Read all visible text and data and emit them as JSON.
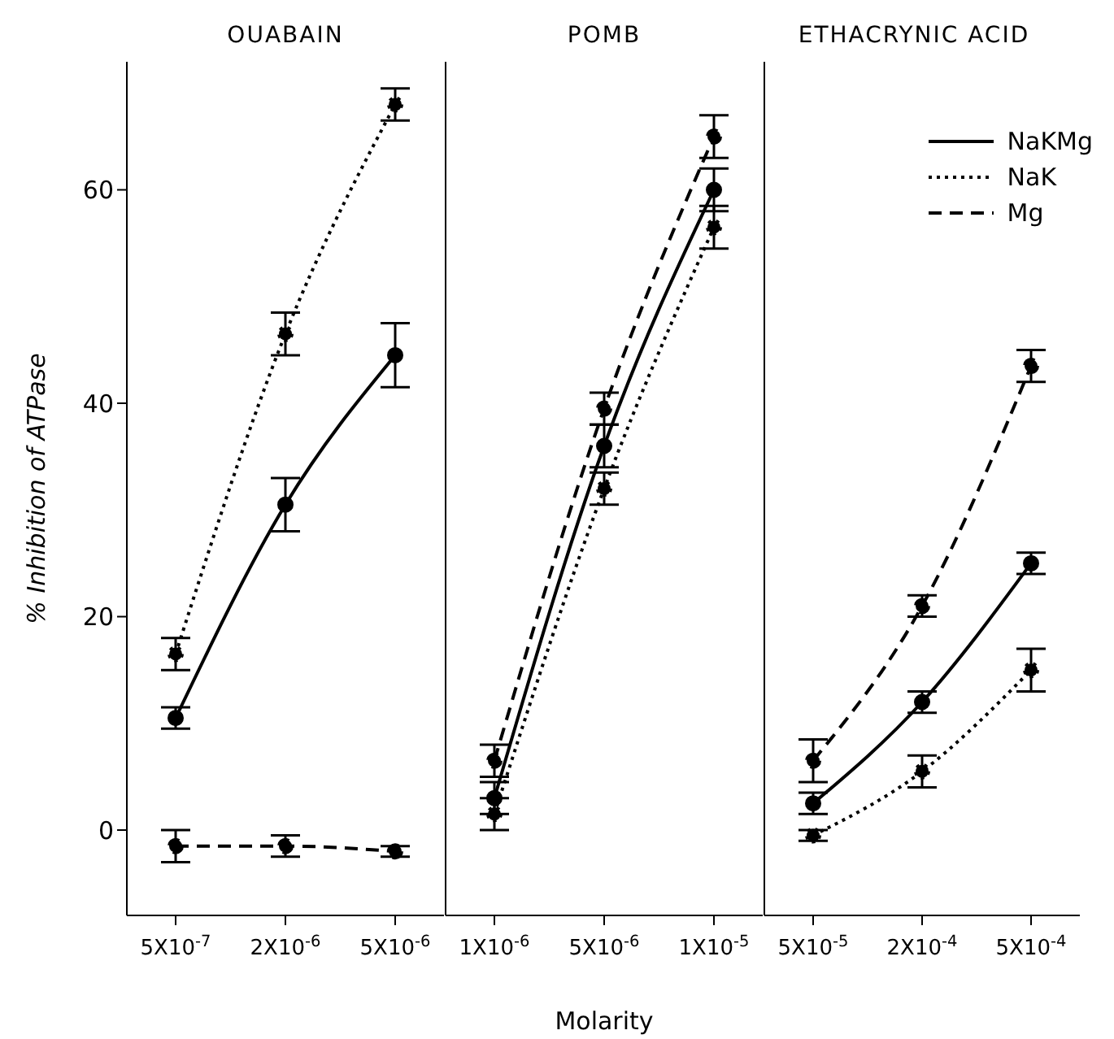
{
  "chart_data": [
    {
      "type": "line",
      "title": "OUABAIN",
      "ylabel": "% Inhibition of ATPase",
      "categories": [
        "5X10$^{-7}$",
        "2X10$^{-6}$",
        "5X10$^{-6}$"
      ],
      "ylim": [
        -8,
        72
      ],
      "yticks": [
        0,
        20,
        40,
        60
      ],
      "marker": "circle",
      "series": [
        {
          "color": "#000000",
          "line_style": "solid",
          "values": [
            10.5,
            30.5,
            44.5
          ],
          "errors": [
            1,
            2.5,
            3
          ]
        },
        {
          "color": "#000000",
          "line_style": "dotted",
          "values": [
            16.5,
            46.5,
            68
          ],
          "errors": [
            1.5,
            2,
            1.5
          ]
        },
        {
          "color": "#000000",
          "line_style": "dashed",
          "values": [
            -1.5,
            -1.5,
            -2
          ],
          "errors": [
            1.5,
            1,
            0.5
          ]
        }
      ]
    },
    {
      "type": "line",
      "title": "POMB",
      "xlabel": "Molarity",
      "categories": [
        "1X10$^{-6}$",
        "5X10$^{-6}$",
        "1X10$^{-5}$"
      ],
      "ylim": [
        -8,
        72
      ],
      "marker": "circle",
      "tick_labels": "x",
      "series": [
        {
          "color": "#000000",
          "line_style": "solid",
          "values": [
            3,
            36,
            60
          ],
          "errors": [
            1.5,
            2,
            2
          ]
        },
        {
          "color": "#000000",
          "line_style": "dotted",
          "values": [
            1.5,
            32,
            56.5
          ],
          "errors": [
            1.5,
            1.5,
            2
          ]
        },
        {
          "color": "#000000",
          "line_style": "dashed",
          "values": [
            6.5,
            39.5,
            65
          ],
          "errors": [
            1.5,
            1.5,
            2
          ]
        }
      ]
    },
    {
      "type": "line",
      "title": "ETHACRYNIC  ACID",
      "categories": [
        "5X10$^{-5}$",
        "2X10$^{-4}$",
        "5X10$^{-4}$"
      ],
      "ylim": [
        -8,
        72
      ],
      "marker": "circle",
      "tick_labels": "x",
      "legend": "top right",
      "series": [
        {
          "name": "NaKMg",
          "color": "#000000",
          "line_style": "solid",
          "values": [
            2.5,
            12,
            25
          ],
          "errors": [
            1,
            1,
            1
          ]
        },
        {
          "name": "NaK",
          "color": "#000000",
          "line_style": "dotted",
          "values": [
            -0.5,
            5.5,
            15
          ],
          "errors": [
            0.5,
            1.5,
            2
          ]
        },
        {
          "name": "Mg",
          "color": "#000000",
          "line_style": "dashed",
          "values": [
            6.5,
            21,
            43.5
          ],
          "errors": [
            2,
            1,
            1.5
          ]
        }
      ]
    }
  ]
}
